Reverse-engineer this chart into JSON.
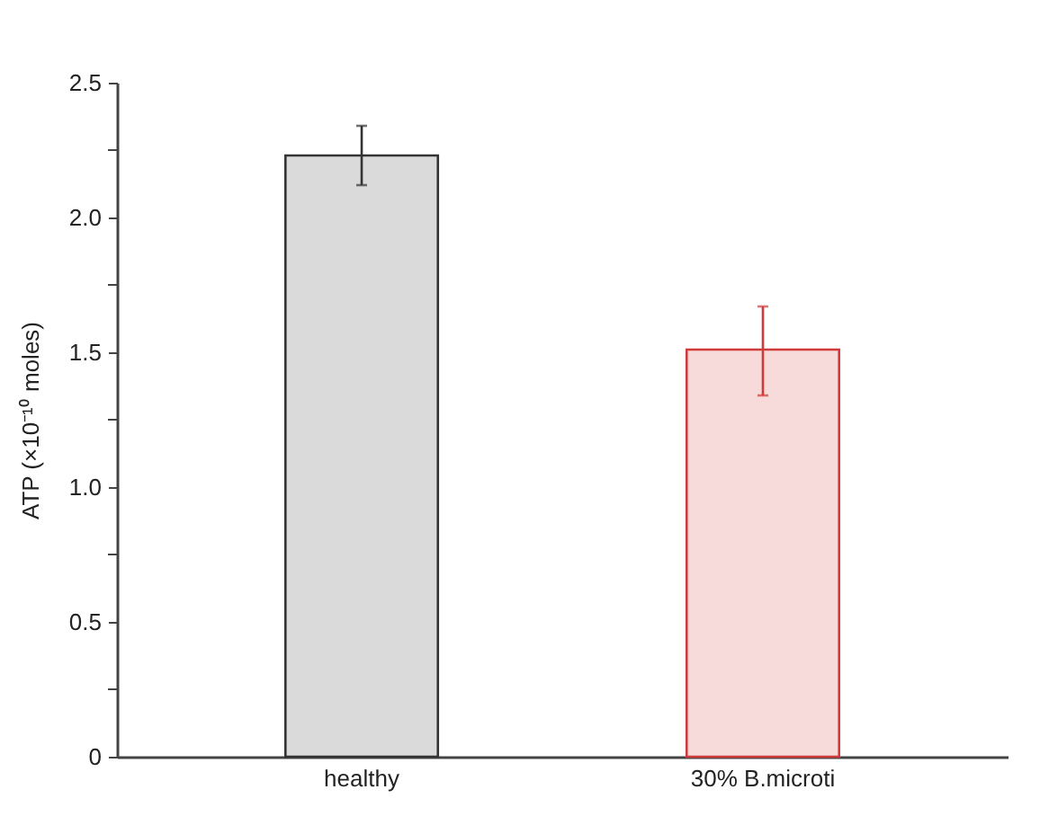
{
  "chart_data": {
    "type": "bar",
    "ylabel": "ATP (×10⁻¹⁰ moles)",
    "categories": [
      "healthy",
      "30% B.microti"
    ],
    "values": [
      2.23,
      1.51
    ],
    "errors": [
      [
        2.12,
        2.34
      ],
      [
        1.34,
        1.67
      ]
    ],
    "colors": [
      "#333333",
      "#d03a3a"
    ],
    "ylim": [
      0,
      2.5
    ],
    "yticks": [
      0,
      {
        "value": 0.25,
        "label": null
      },
      0.5,
      {
        "value": 0.75,
        "label": null
      },
      {
        "value": 1,
        "label": "1.0"
      },
      {
        "value": 1.25,
        "label": null
      },
      1.5,
      {
        "value": 1.75,
        "label": null
      },
      {
        "value": 2,
        "label": "2.0"
      },
      {
        "value": 2.25,
        "label": null
      },
      2.5
    ],
    "grid": false
  }
}
